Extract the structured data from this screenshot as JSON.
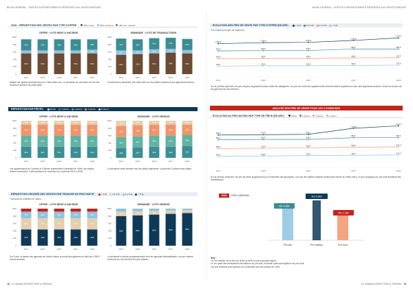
{
  "header": {
    "left": "BILAN GÉNÉRAL · VENTES D'APPARTEMENTS RÉSERVÉS AUX INVESTISSEURS",
    "right": "BILAN GÉNÉRAL · VENTES D'APPARTEMENTS RÉSERVÉS AUX INVESTISSEURS"
  },
  "footer": {
    "left_page": "78",
    "left_text": "LE GRAND EXPERT PRIX & TRENDS",
    "right_text": "LE GRAND EXPERT PRIX & TRENDS",
    "right_page": "79"
  },
  "colors": {
    "navy": "#0e3a57",
    "brown": "#6b4b33",
    "lightblue": "#8fc3e0",
    "beige": "#e4cfae",
    "orange": "#f0956b",
    "teal": "#3c8d94",
    "red": "#c5231d",
    "green": "#5fb4a4"
  },
  "s1": {
    "title": "2018 – RÉPARTITION DES VENTES PAR TYPE D'OFFRE",
    "legend": [
      "Offre neuve",
      "Offre ancienne",
      "Offre anc. récente"
    ],
    "left_sub": "OFFRE · LOTS NEUF & ANCIENS",
    "right_sub": "DEMANDE · LOTS DE TRANSACTIONS",
    "left_text": "Malgré une grande diversité des prix, l'offre reste rare. La demande se concentre sur les lots récents et anciens de petite taille.",
    "right_text": "Concernant la demande, elle reste forte sur les petites surfaces et les logements anciens."
  },
  "s2": {
    "title": "RÉPARTITION PAR PIÈCES",
    "legend": [
      "Studio",
      "2 pièces",
      "3 pièces",
      "4 pièces",
      "5 pièces"
    ],
    "left_sub": "OFFRE · LOTS NEUF & ANCIENS",
    "right_sub": "DEMANDE · LOTS VENDUS",
    "left_text": "Les appartements de 2 pièces et 3 pièces représentent l'essentiel de l'offre, les studios restent recherchés. Cette tendance se confirme sur la période 2014 à 2018.",
    "right_text": "La demande reste orientée vers les petits logements. La part des 3 pièces reste stable."
  },
  "s3": {
    "title": "RÉPARTITION CROISÉE DES VENTES PAR TRANCHE DE PRIX PAR M²",
    "legend": [
      "< 3 k€",
      "3 à 4 k€",
      "4 à 5 k€",
      "> 5 k€"
    ],
    "subnote": "Transactions réalisées en valeur",
    "left_sub": "OFFRE · LOTS NEUF & ANCIENS",
    "right_sub": "DEMANDE · LOTS VENDUS",
    "left_text": "Sur 5 ans, la baisse des gammes les moins chères au profit des gammes au-delà de 4 500 € s'est accentuée.",
    "right_text": "La demande s'oriente progressivement vers les gammes intermédiaires. Les prix restent contenus sur les tranches les plus basses."
  },
  "r1": {
    "title": "ÉVOLUTION DES PRIX DE VENTE PAR TYPE D'OFFRE (EN €/M²)",
    "legend": [
      "< 3 k€",
      "3 à 4 k€",
      "4 à 5 k€",
      "> 5 k€"
    ],
    "note": "Prix moyens par type de logement",
    "text": "Sur la période observée, les prix moyens augmentent dans toutes les catégories. Les prix de vente des appartements récents restent supérieurs à ceux des logements anciens, l'écart se creuse sur les gammes les plus élevées."
  },
  "red_banner": {
    "text": "ANALYSE DES PRIX DE VENTE POUR LES 3 COMMUNES"
  },
  "r2": {
    "title": "ÉVOLUTION DU PRIX MOYEN PAR TYPE DE PIÈCE (EN €/M²)",
    "legend": [
      "Studio",
      "2 pièces",
      "3 pièces",
      "4 pièces"
    ],
    "text": "Sur la période observée, les prix de vente progressent pour l'ensemble des typologies. Les prix des petites surfaces restent plus élevés au mètre carré, ce qui s'explique par une forte demande des investisseurs."
  },
  "r3": {
    "badge": "2018",
    "label": "PRIX MÉDIAN",
    "p_top": "Rs 6,5M",
    "p_left": "Rs 4,5M",
    "p_right": "Rs 1,2M",
    "bottom_low": "Prix bas",
    "bottom_mid": "Prix médian",
    "bottom_high": "Prix haut",
    "note_title": "Note :",
    "note_1": "Le Prix médian est le prix qui divise la série en deux groupes égaux.",
    "note_2": "Le 1er quart des transactions est inférieur au prix bas, le dernier quart est supérieur au prix haut.",
    "note_3": "Les prix médians sont calculés sur l'ensemble des lots vendus en 2018."
  },
  "chart_data": [
    {
      "type": "bar",
      "title": "OFFRE · LOTS NEUF & ANCIENS",
      "categories": [
        "2014",
        "2015",
        "2016",
        "2017",
        "2018"
      ],
      "ylim": [
        0,
        1000
      ],
      "series": [
        {
          "name": "Offre neuve",
          "values": [
            560,
            560,
            560,
            560,
            560
          ]
        },
        {
          "name": "Offre ancienne",
          "values": [
            80,
            80,
            80,
            80,
            100
          ]
        },
        {
          "name": "Offre anc. récente",
          "values": [
            300,
            300,
            300,
            300,
            280
          ]
        }
      ]
    },
    {
      "type": "bar",
      "title": "DEMANDE · LOTS DE TRANSACTIONS",
      "categories": [
        "2014",
        "2015",
        "2016",
        "2017",
        "2018"
      ],
      "ylim": [
        0,
        1000
      ],
      "series": [
        {
          "name": "Offre neuve",
          "values": [
            520,
            540,
            560,
            580,
            560
          ]
        },
        {
          "name": "Offre ancienne",
          "values": [
            120,
            100,
            110,
            100,
            90
          ]
        },
        {
          "name": "Offre anc. récente",
          "values": [
            320,
            300,
            300,
            300,
            300
          ]
        }
      ]
    }
  ]
}
